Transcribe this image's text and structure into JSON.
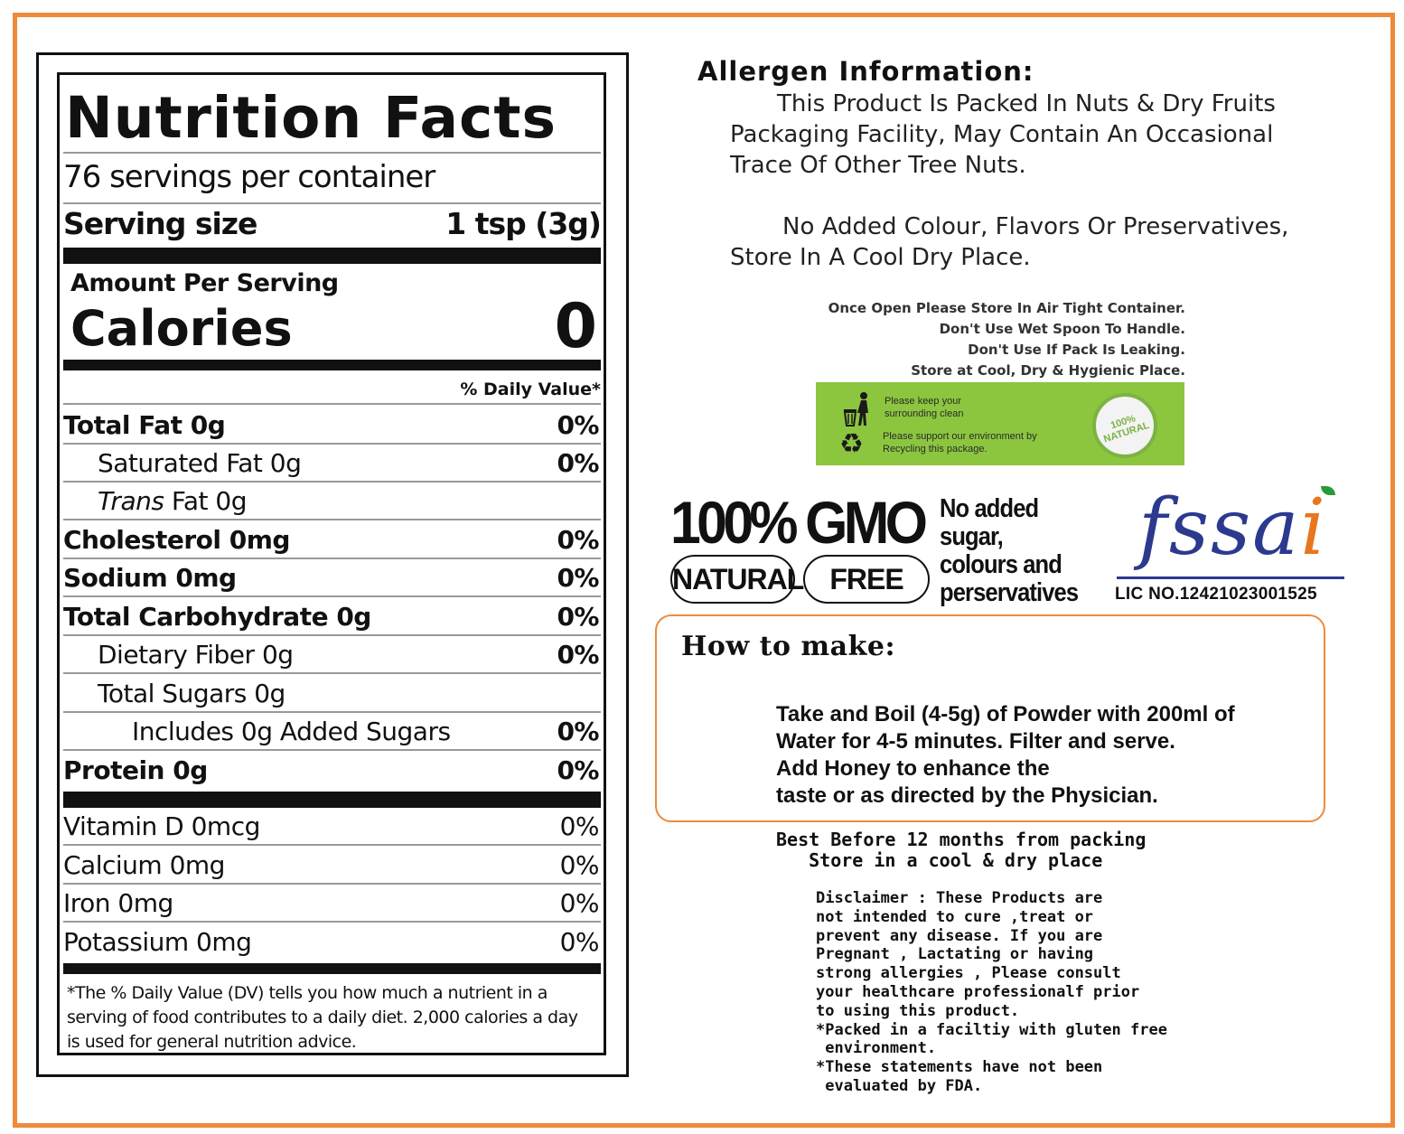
{
  "colors": {
    "frame": "#ee8a3a",
    "green_box": "#8cc63f",
    "fssai_blue": "#2b3a8e",
    "fssai_orange": "#e8761e"
  },
  "nutrition": {
    "title": "Nutrition Facts",
    "servings": "76 servings per container",
    "serving_size_label": "Serving size",
    "serving_size_value": "1 tsp (3g)",
    "amount_per_serving": "Amount Per Serving",
    "calories_label": "Calories",
    "calories_value": "0",
    "daily_value_header": "% Daily Value*",
    "rows": [
      {
        "label": "Total Fat 0g",
        "pct": "0%"
      },
      {
        "label": "Saturated Fat 0g",
        "pct": "0%"
      },
      {
        "label_italic": "Trans",
        "label_rest": " Fat 0g",
        "pct": ""
      },
      {
        "label": "Cholesterol 0mg",
        "pct": "0%"
      },
      {
        "label": "Sodium 0mg",
        "pct": "0%"
      },
      {
        "label": "Total Carbohydrate 0g",
        "pct": "0%"
      },
      {
        "label": "Dietary Fiber 0g",
        "pct": "0%"
      },
      {
        "label": "Total Sugars 0g",
        "pct": ""
      },
      {
        "label": "Includes 0g Added Sugars",
        "pct": "0%"
      },
      {
        "label": "Protein 0g",
        "pct": "0%"
      },
      {
        "label": "Vitamin D 0mcg",
        "pct": "0%"
      },
      {
        "label": "Calcium 0mg",
        "pct": "0%"
      },
      {
        "label": "Iron 0mg",
        "pct": "0%"
      },
      {
        "label": "Potassium 0mg",
        "pct": "0%"
      }
    ],
    "footnote": "*The % Daily Value (DV) tells you how much a nutrient in a serving of food contributes to a daily diet. 2,000 calories a day is used for general nutrition advice."
  },
  "allergen": {
    "title": "Allergen Information:",
    "lines": [
      "This Product Is Packed In Nuts & Dry Fruits",
      "Packaging Facility, May Contain An Occasional",
      "Trace Of Other Tree Nuts."
    ],
    "store_lines": [
      "No Added Colour, Flavors Or Preservatives,",
      "Store In A Cool Dry Place."
    ]
  },
  "care": [
    "Once Open Please Store In Air Tight Container.",
    "Don't Use Wet Spoon To Handle.",
    "Don't Use If Pack Is Leaking.",
    "Store at Cool, Dry & Hygienic Place."
  ],
  "eco": {
    "line1a": "Please keep your",
    "line1b": "surrounding clean",
    "line2a": "Please support our environment by",
    "line2b": "Recycling this package.",
    "badge": "100% NATURAL",
    "icons": [
      "trash-bin-icon",
      "recycle-icon",
      "natural-badge-icon"
    ]
  },
  "badges": {
    "big": "100% GMO",
    "natural": "NATURAL",
    "free": "FREE",
    "no_added": [
      "No added",
      "sugar,",
      "colours and",
      "perservatives"
    ]
  },
  "fssai": {
    "logo_text": "fssai",
    "lic": "LIC NO.12421023001525"
  },
  "howto": {
    "title": "How to make:",
    "lines": [
      "Take and Boil (4-5g) of Powder with 200ml of",
      "Water for 4-5 minutes. Filter and serve.",
      "Add Honey to enhance the",
      "taste or as directed by the Physician."
    ]
  },
  "best_before": [
    "Best Before 12 months from packing",
    "   Store in a cool & dry place"
  ],
  "disclaimer": [
    "Disclaimer : These Products are",
    "not intended to cure ,treat or",
    "prevent any disease. If you are",
    "Pregnant , Lactating or having",
    "strong allergies , Please consult",
    "your healthcare professionalf prior",
    "to using this product.",
    "*Packed in a faciltiy with gluten free",
    " environment.",
    "*These statements have not been",
    " evaluated by FDA."
  ]
}
